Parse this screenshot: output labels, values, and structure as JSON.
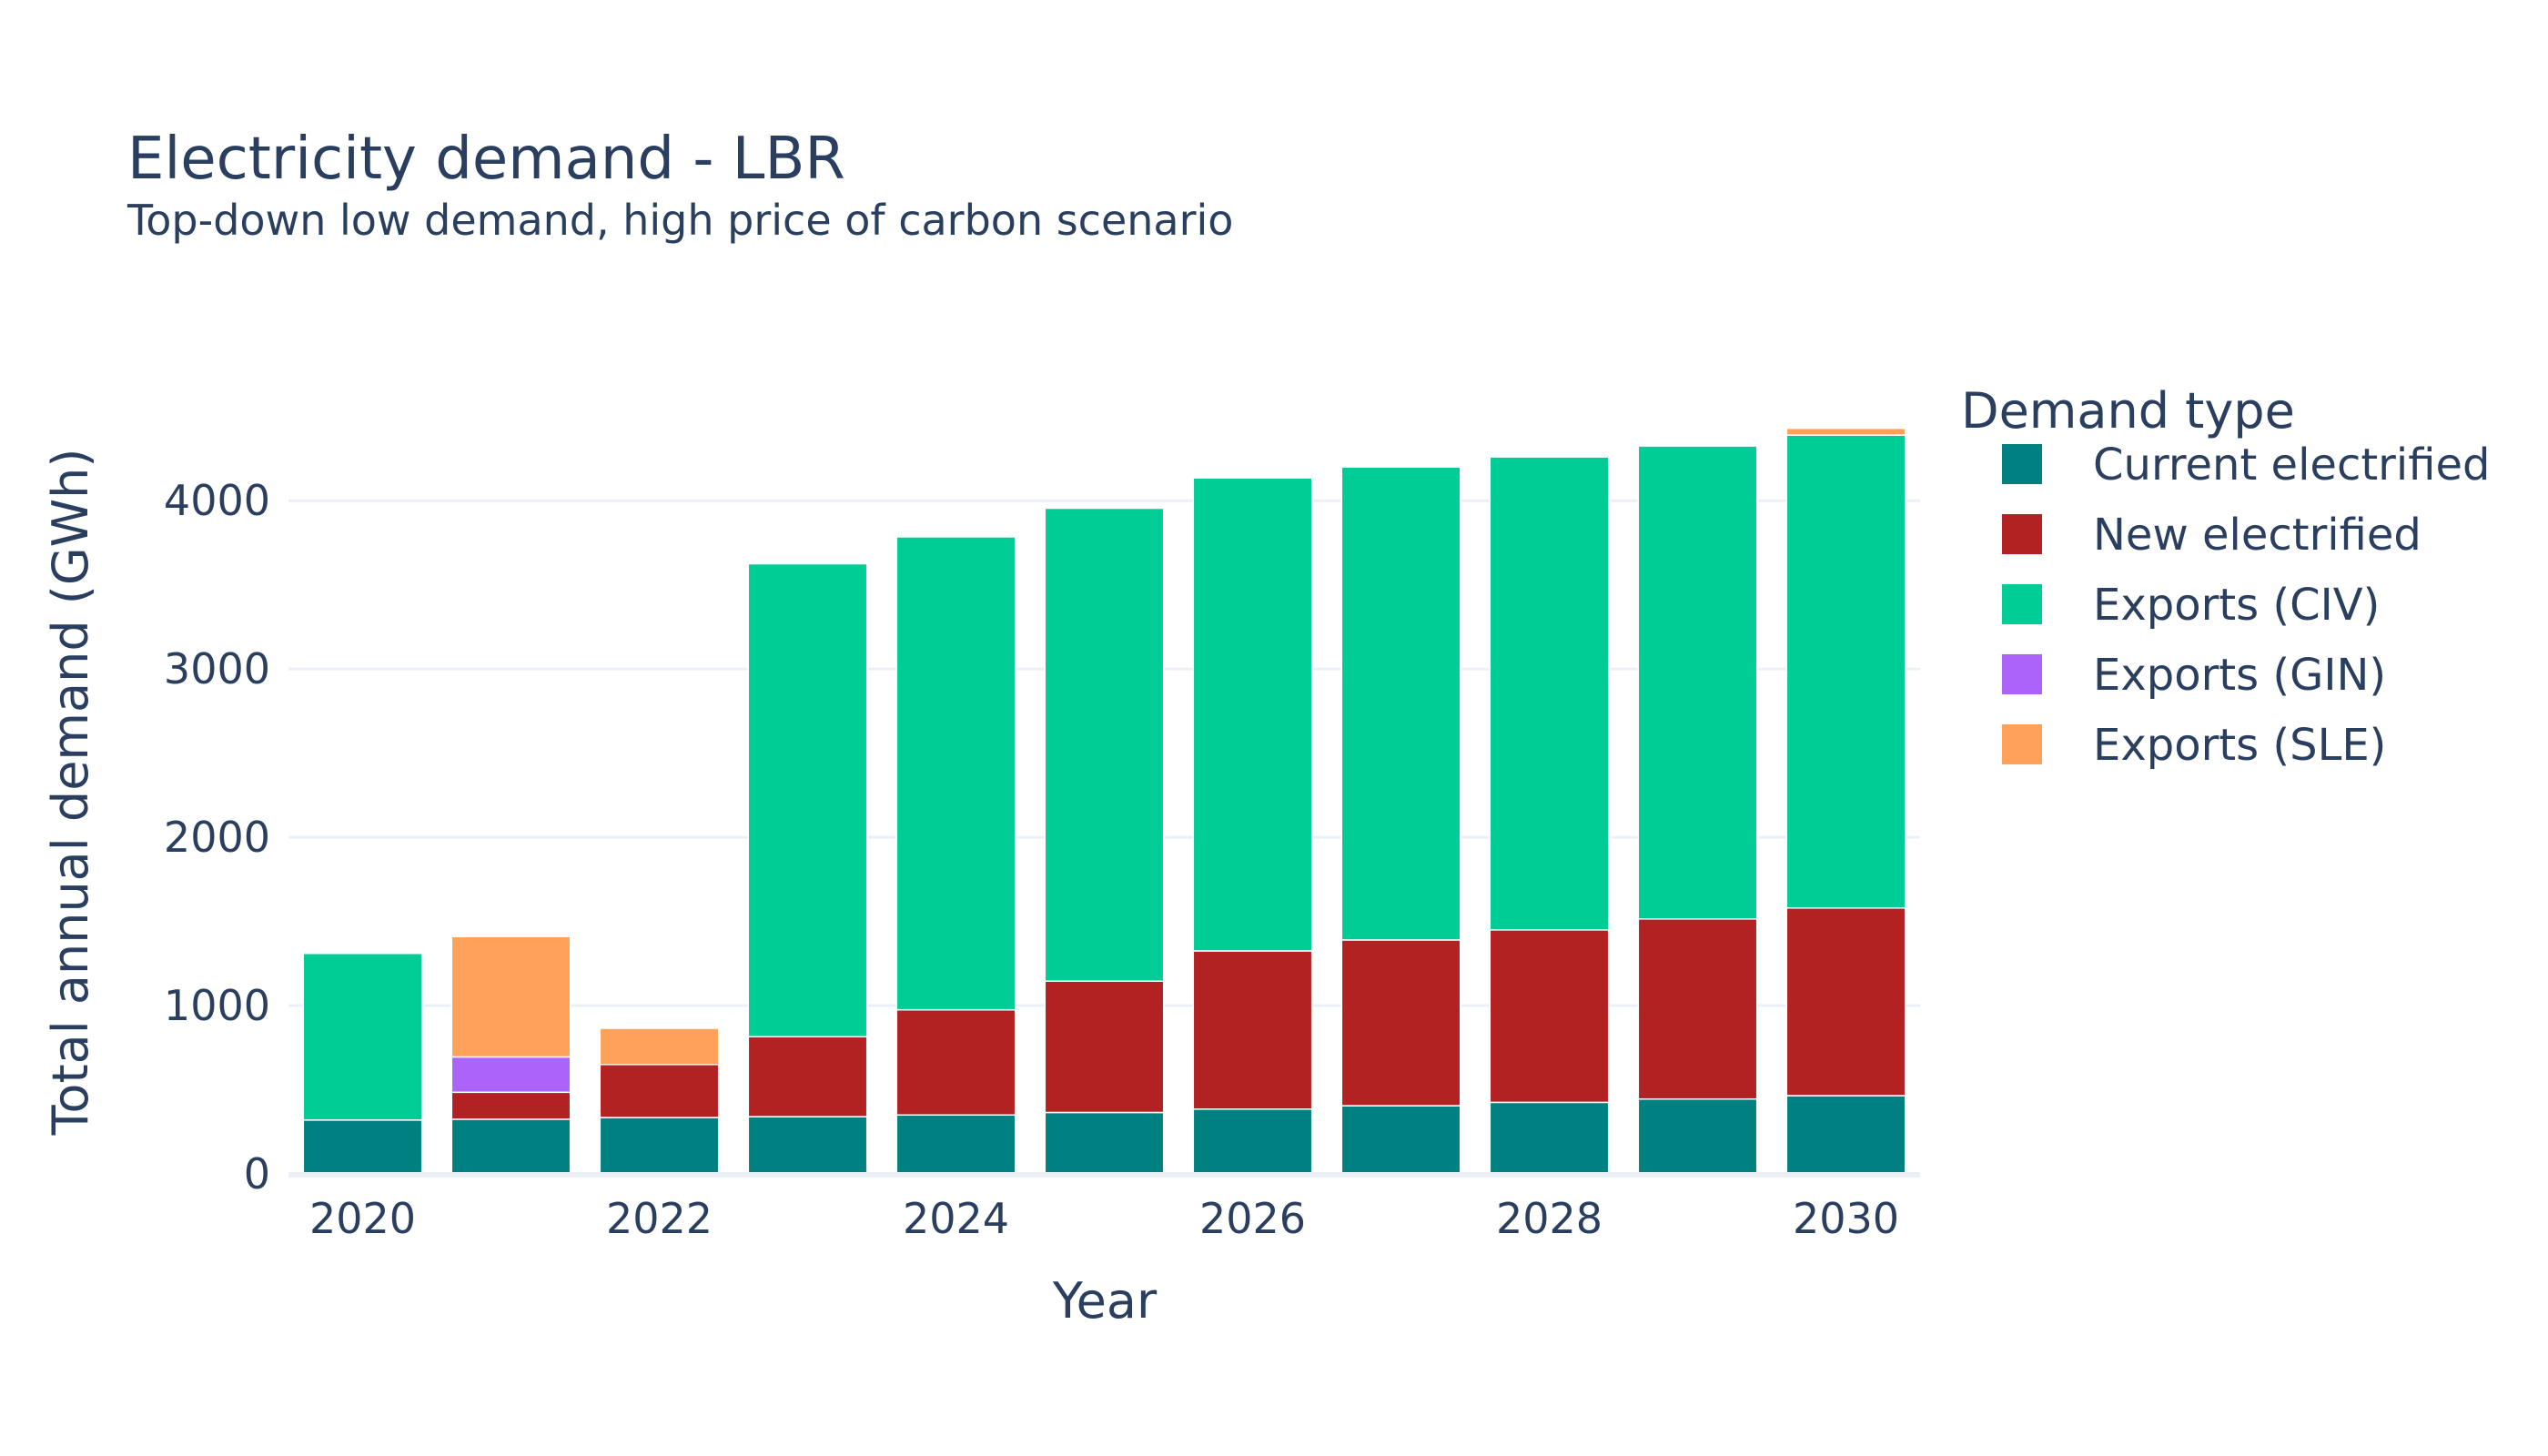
{
  "chart_data": {
    "type": "bar",
    "barmode": "stack",
    "title": "Electricity demand - LBR",
    "subtitle": "Top-down low demand, high price of carbon scenario",
    "xlabel": "Year",
    "ylabel": "Total annual demand (GWh)",
    "x_tick_labels": [
      "2020",
      "2022",
      "2024",
      "2026",
      "2028",
      "2030"
    ],
    "y_tick_labels": [
      "0",
      "1000",
      "2000",
      "3000",
      "4000"
    ],
    "ylim": [
      0,
      4650
    ],
    "grid": true,
    "legend_title": "Demand type",
    "legend_position": "right",
    "categories": [
      2020,
      2021,
      2022,
      2023,
      2024,
      2025,
      2026,
      2027,
      2028,
      2029,
      2030
    ],
    "series": [
      {
        "name": "Current electrified",
        "color": "#008080",
        "values": [
          320,
          325,
          335,
          340,
          350,
          365,
          385,
          405,
          425,
          445,
          465
        ]
      },
      {
        "name": "New electrified",
        "color": "#b22222",
        "values": [
          0,
          160,
          315,
          475,
          625,
          780,
          940,
          985,
          1025,
          1070,
          1115
        ]
      },
      {
        "name": "Exports (CIV)",
        "color": "#00cc96",
        "values": [
          990,
          0,
          0,
          2810,
          2810,
          2810,
          2810,
          2810,
          2810,
          2810,
          2810
        ]
      },
      {
        "name": "Exports (GIN)",
        "color": "#ab63fa",
        "values": [
          0,
          210,
          0,
          0,
          0,
          0,
          0,
          0,
          0,
          0,
          0
        ]
      },
      {
        "name": "Exports (SLE)",
        "color": "#ffa15a",
        "values": [
          0,
          715,
          215,
          0,
          0,
          0,
          0,
          0,
          0,
          0,
          40
        ]
      }
    ]
  }
}
